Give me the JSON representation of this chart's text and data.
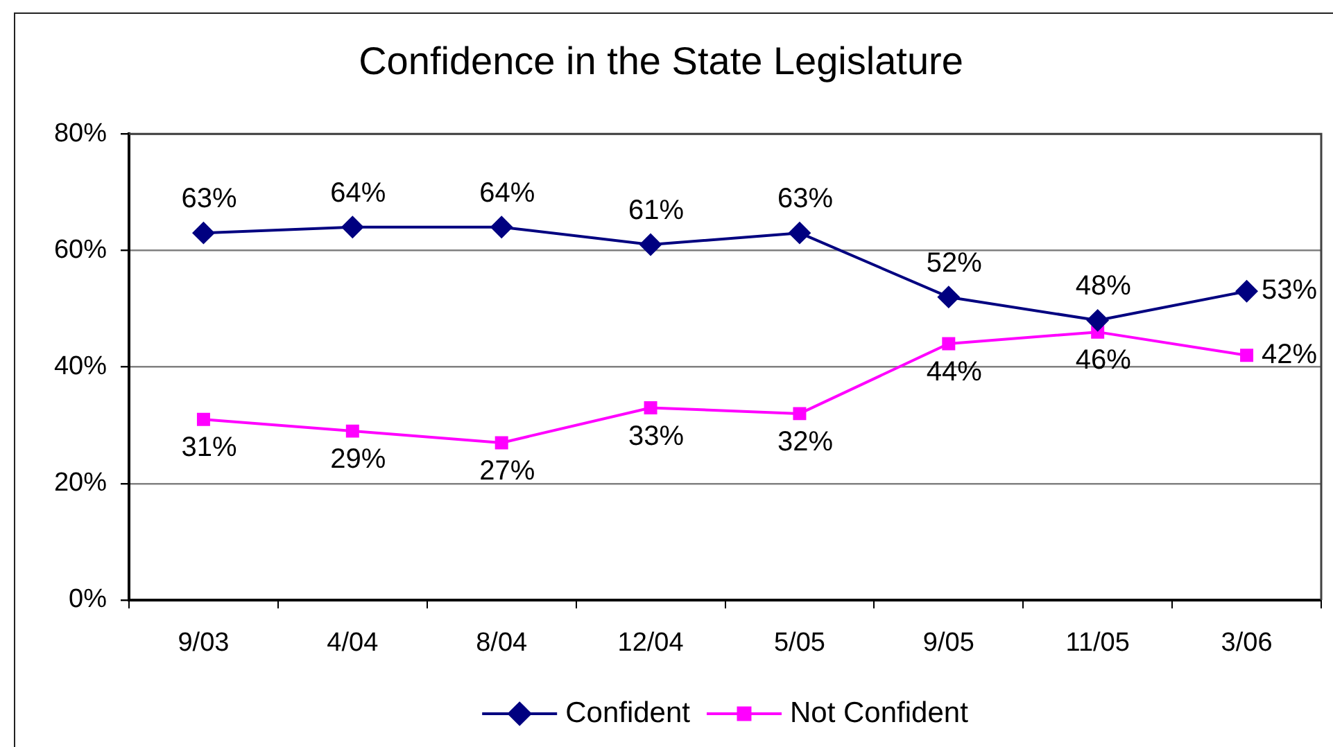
{
  "chart_data": {
    "type": "line",
    "title": "Confidence in the State Legislature",
    "categories": [
      "9/03",
      "4/04",
      "8/04",
      "12/04",
      "5/05",
      "9/05",
      "11/05",
      "3/06"
    ],
    "series": [
      {
        "name": "Confident",
        "color": "#000080",
        "marker": "diamond",
        "values": [
          63,
          64,
          64,
          61,
          63,
          52,
          48,
          53
        ],
        "value_labels": [
          "63%",
          "64%",
          "64%",
          "61%",
          "63%",
          "52%",
          "48%",
          "53%"
        ]
      },
      {
        "name": "Not Confident",
        "color": "#ff00ff",
        "marker": "square",
        "values": [
          31,
          29,
          27,
          33,
          32,
          44,
          46,
          42
        ],
        "value_labels": [
          "31%",
          "29%",
          "27%",
          "33%",
          "32%",
          "44%",
          "46%",
          "42%"
        ]
      }
    ],
    "ylim": [
      0,
      80
    ],
    "yticks": [
      {
        "value": 0,
        "label": "0%"
      },
      {
        "value": 20,
        "label": "20%"
      },
      {
        "value": 40,
        "label": "40%"
      },
      {
        "value": 60,
        "label": "60%"
      },
      {
        "value": 80,
        "label": "80%"
      }
    ],
    "grid": "y",
    "legend": "bottom",
    "line_style": "solid"
  }
}
